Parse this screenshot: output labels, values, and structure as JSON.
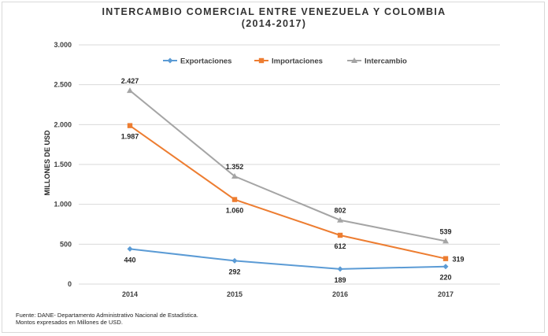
{
  "chart_data": {
    "type": "line",
    "title": "INTERCAMBIO COMERCIAL ENTRE VENEZUELA Y COLOMBIA",
    "subtitle": "(2014-2017)",
    "xlabel": "",
    "ylabel": "MILLONES DE USD",
    "categories": [
      "2014",
      "2015",
      "2016",
      "2017"
    ],
    "ylim": [
      0,
      3000
    ],
    "yticks": [
      0,
      500,
      1000,
      1500,
      2000,
      2500,
      3000
    ],
    "ytick_labels": [
      "0",
      "500",
      "1.000",
      "1.500",
      "2.000",
      "2.500",
      "3.000"
    ],
    "grid": true,
    "legend": "top",
    "series": [
      {
        "name": "Exportaciones",
        "values": [
          440,
          292,
          189,
          220
        ],
        "labels": [
          "440",
          "292",
          "189",
          "220"
        ],
        "color": "#5b9bd5",
        "marker": "diamond"
      },
      {
        "name": "Importaciones",
        "values": [
          1987,
          1060,
          612,
          319
        ],
        "labels": [
          "1.987",
          "1.060",
          "612",
          "319"
        ],
        "color": "#ed7d31",
        "marker": "square"
      },
      {
        "name": "Intercambio",
        "values": [
          2427,
          1352,
          802,
          539
        ],
        "labels": [
          "2.427",
          "1.352",
          "802",
          "539"
        ],
        "color": "#a5a5a5",
        "marker": "triangle"
      }
    ]
  },
  "footer": {
    "source": "Fuente: DANE- Departamento Administrativo Nacional de Estadística.",
    "note": "Montos expresados en Millones de USD."
  }
}
